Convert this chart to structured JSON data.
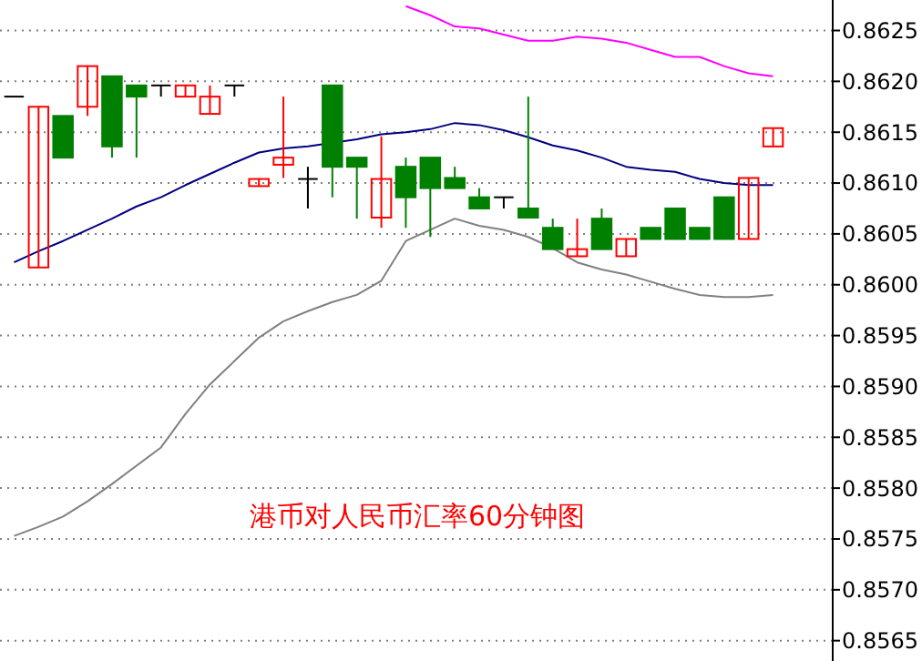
{
  "chart_data": {
    "type": "candlestick",
    "title": "港币对人民币汇率60分钟图",
    "categories": [
      null,
      null,
      null,
      null,
      null,
      null,
      null,
      null,
      null,
      null,
      null,
      null,
      null,
      null,
      null,
      null,
      null,
      null,
      null,
      null,
      null,
      null,
      null,
      null,
      null,
      null,
      null,
      null,
      null,
      null,
      null,
      null
    ],
    "series": [
      {
        "colors": [
          "#000000",
          "#ff0000",
          "#008000",
          "#ff0000",
          "#008000",
          "#008000",
          "#000000",
          "#ff0000",
          "#ff0000",
          "#000000",
          "#ff0000",
          "#ff0000",
          "#000000",
          "#008000",
          "#008000",
          "#ff0000",
          "#008000",
          "#008000",
          "#008000",
          "#008000",
          "#000000",
          "#008000",
          "#008000",
          "#ff0000",
          "#008000",
          "#ff0000",
          "#008000",
          "#008000",
          "#008000",
          "#008000",
          "#ff0000",
          "#ff0000"
        ],
        "ohlc": [
          [
            0.86185,
            0.86185,
            0.86185,
            0.86185
          ],
          [
            0.86017,
            0.86175,
            0.86017,
            0.86175
          ],
          [
            0.86166,
            0.86166,
            0.86125,
            0.86125
          ],
          [
            0.86175,
            0.86215,
            0.86166,
            0.86215
          ],
          [
            0.86205,
            0.86205,
            0.86125,
            0.86136
          ],
          [
            0.86196,
            0.86196,
            0.86125,
            0.86185
          ],
          [
            0.86196,
            0.86196,
            0.86185,
            0.86196
          ],
          [
            0.86185,
            0.86196,
            0.86185,
            0.86196
          ],
          [
            0.86168,
            0.86196,
            0.86168,
            0.86185
          ],
          [
            0.86196,
            0.86196,
            0.86185,
            0.86196
          ],
          [
            0.86097,
            0.86104,
            0.86097,
            0.86104
          ],
          [
            0.86118,
            0.86185,
            0.86105,
            0.86125
          ],
          [
            0.86104,
            0.86116,
            0.86075,
            0.86104
          ],
          [
            0.86196,
            0.86196,
            0.86086,
            0.86116
          ],
          [
            0.86125,
            0.86125,
            0.86065,
            0.86116
          ],
          [
            0.86066,
            0.86146,
            0.86056,
            0.86104
          ],
          [
            0.86116,
            0.86125,
            0.86056,
            0.86086
          ],
          [
            0.86125,
            0.86125,
            0.86047,
            0.86095
          ],
          [
            0.86105,
            0.86116,
            0.86095,
            0.86095
          ],
          [
            0.86086,
            0.86095,
            0.86075,
            0.86075
          ],
          [
            0.86086,
            0.86086,
            0.86075,
            0.86086
          ],
          [
            0.86075,
            0.86185,
            0.86066,
            0.86066
          ],
          [
            0.86056,
            0.86065,
            0.86035,
            0.86035
          ],
          [
            0.86028,
            0.86065,
            0.86028,
            0.86035
          ],
          [
            0.86065,
            0.86075,
            0.86035,
            0.86035
          ],
          [
            0.86028,
            0.86045,
            0.86028,
            0.86045
          ],
          [
            0.86056,
            0.86056,
            0.86045,
            0.86045
          ],
          [
            0.86075,
            0.86075,
            0.86045,
            0.86045
          ],
          [
            0.86056,
            0.86056,
            0.86045,
            0.86045
          ],
          [
            0.86086,
            0.86086,
            0.86045,
            0.86045
          ],
          [
            0.86045,
            0.86105,
            0.86045,
            0.86105
          ],
          [
            0.86136,
            0.86154,
            0.86136,
            0.86154
          ]
        ]
      },
      {
        "type": "line",
        "color": "#000080",
        "values": [
          0.86022,
          0.86033,
          0.86043,
          0.86054,
          0.86065,
          0.86077,
          0.86086,
          0.86098,
          0.86109,
          0.8612,
          0.8613,
          0.86134,
          0.86136,
          null,
          0.86143,
          0.86148,
          0.8615,
          0.86153,
          0.86159,
          0.86157,
          0.86152,
          0.86145,
          0.86137,
          0.86132,
          0.86125,
          0.86116,
          0.86113,
          0.86111,
          0.86104,
          0.861,
          0.86098,
          0.86098
        ]
      },
      {
        "type": "line",
        "color": "#ff00ff",
        "values": [
          null,
          null,
          null,
          null,
          null,
          null,
          null,
          null,
          null,
          null,
          null,
          null,
          null,
          null,
          null,
          null,
          0.86274,
          0.86265,
          0.86254,
          0.86252,
          0.86246,
          0.8624,
          0.8624,
          0.86244,
          0.86242,
          0.86238,
          0.86231,
          0.86224,
          0.86224,
          0.86215,
          0.86208,
          0.86205
        ]
      },
      {
        "type": "line",
        "color": "#808080",
        "values": [
          0.85753,
          0.85762,
          0.85772,
          0.85787,
          0.85804,
          0.85822,
          0.8584,
          0.85873,
          0.85902,
          0.85925,
          0.85948,
          0.85964,
          0.85974,
          0.85983,
          0.8599,
          0.86004,
          0.86043,
          0.86054,
          0.86065,
          0.86058,
          0.86054,
          0.86047,
          0.86036,
          0.86022,
          0.86015,
          0.8601,
          0.86003,
          0.85996,
          0.8599,
          0.85988,
          0.85988,
          0.8599
        ]
      }
    ],
    "ylim": [
      0.8563,
      0.8628
    ],
    "yticks": [
      {
        "value": 0.8565,
        "label": "0.8565"
      },
      {
        "value": 0.857,
        "label": "0.8570"
      },
      {
        "value": 0.8575,
        "label": "0.8575"
      },
      {
        "value": 0.858,
        "label": "0.8580"
      },
      {
        "value": 0.8585,
        "label": "0.8585"
      },
      {
        "value": 0.859,
        "label": "0.8590"
      },
      {
        "value": 0.8595,
        "label": "0.8595"
      },
      {
        "value": 0.86,
        "label": "0.8600"
      },
      {
        "value": 0.8605,
        "label": "0.8605"
      },
      {
        "value": 0.861,
        "label": "0.8610"
      },
      {
        "value": 0.8615,
        "label": "0.8615"
      },
      {
        "value": 0.862,
        "label": "0.8620"
      },
      {
        "value": 0.8625,
        "label": "0.8625"
      }
    ],
    "grid": "y"
  }
}
